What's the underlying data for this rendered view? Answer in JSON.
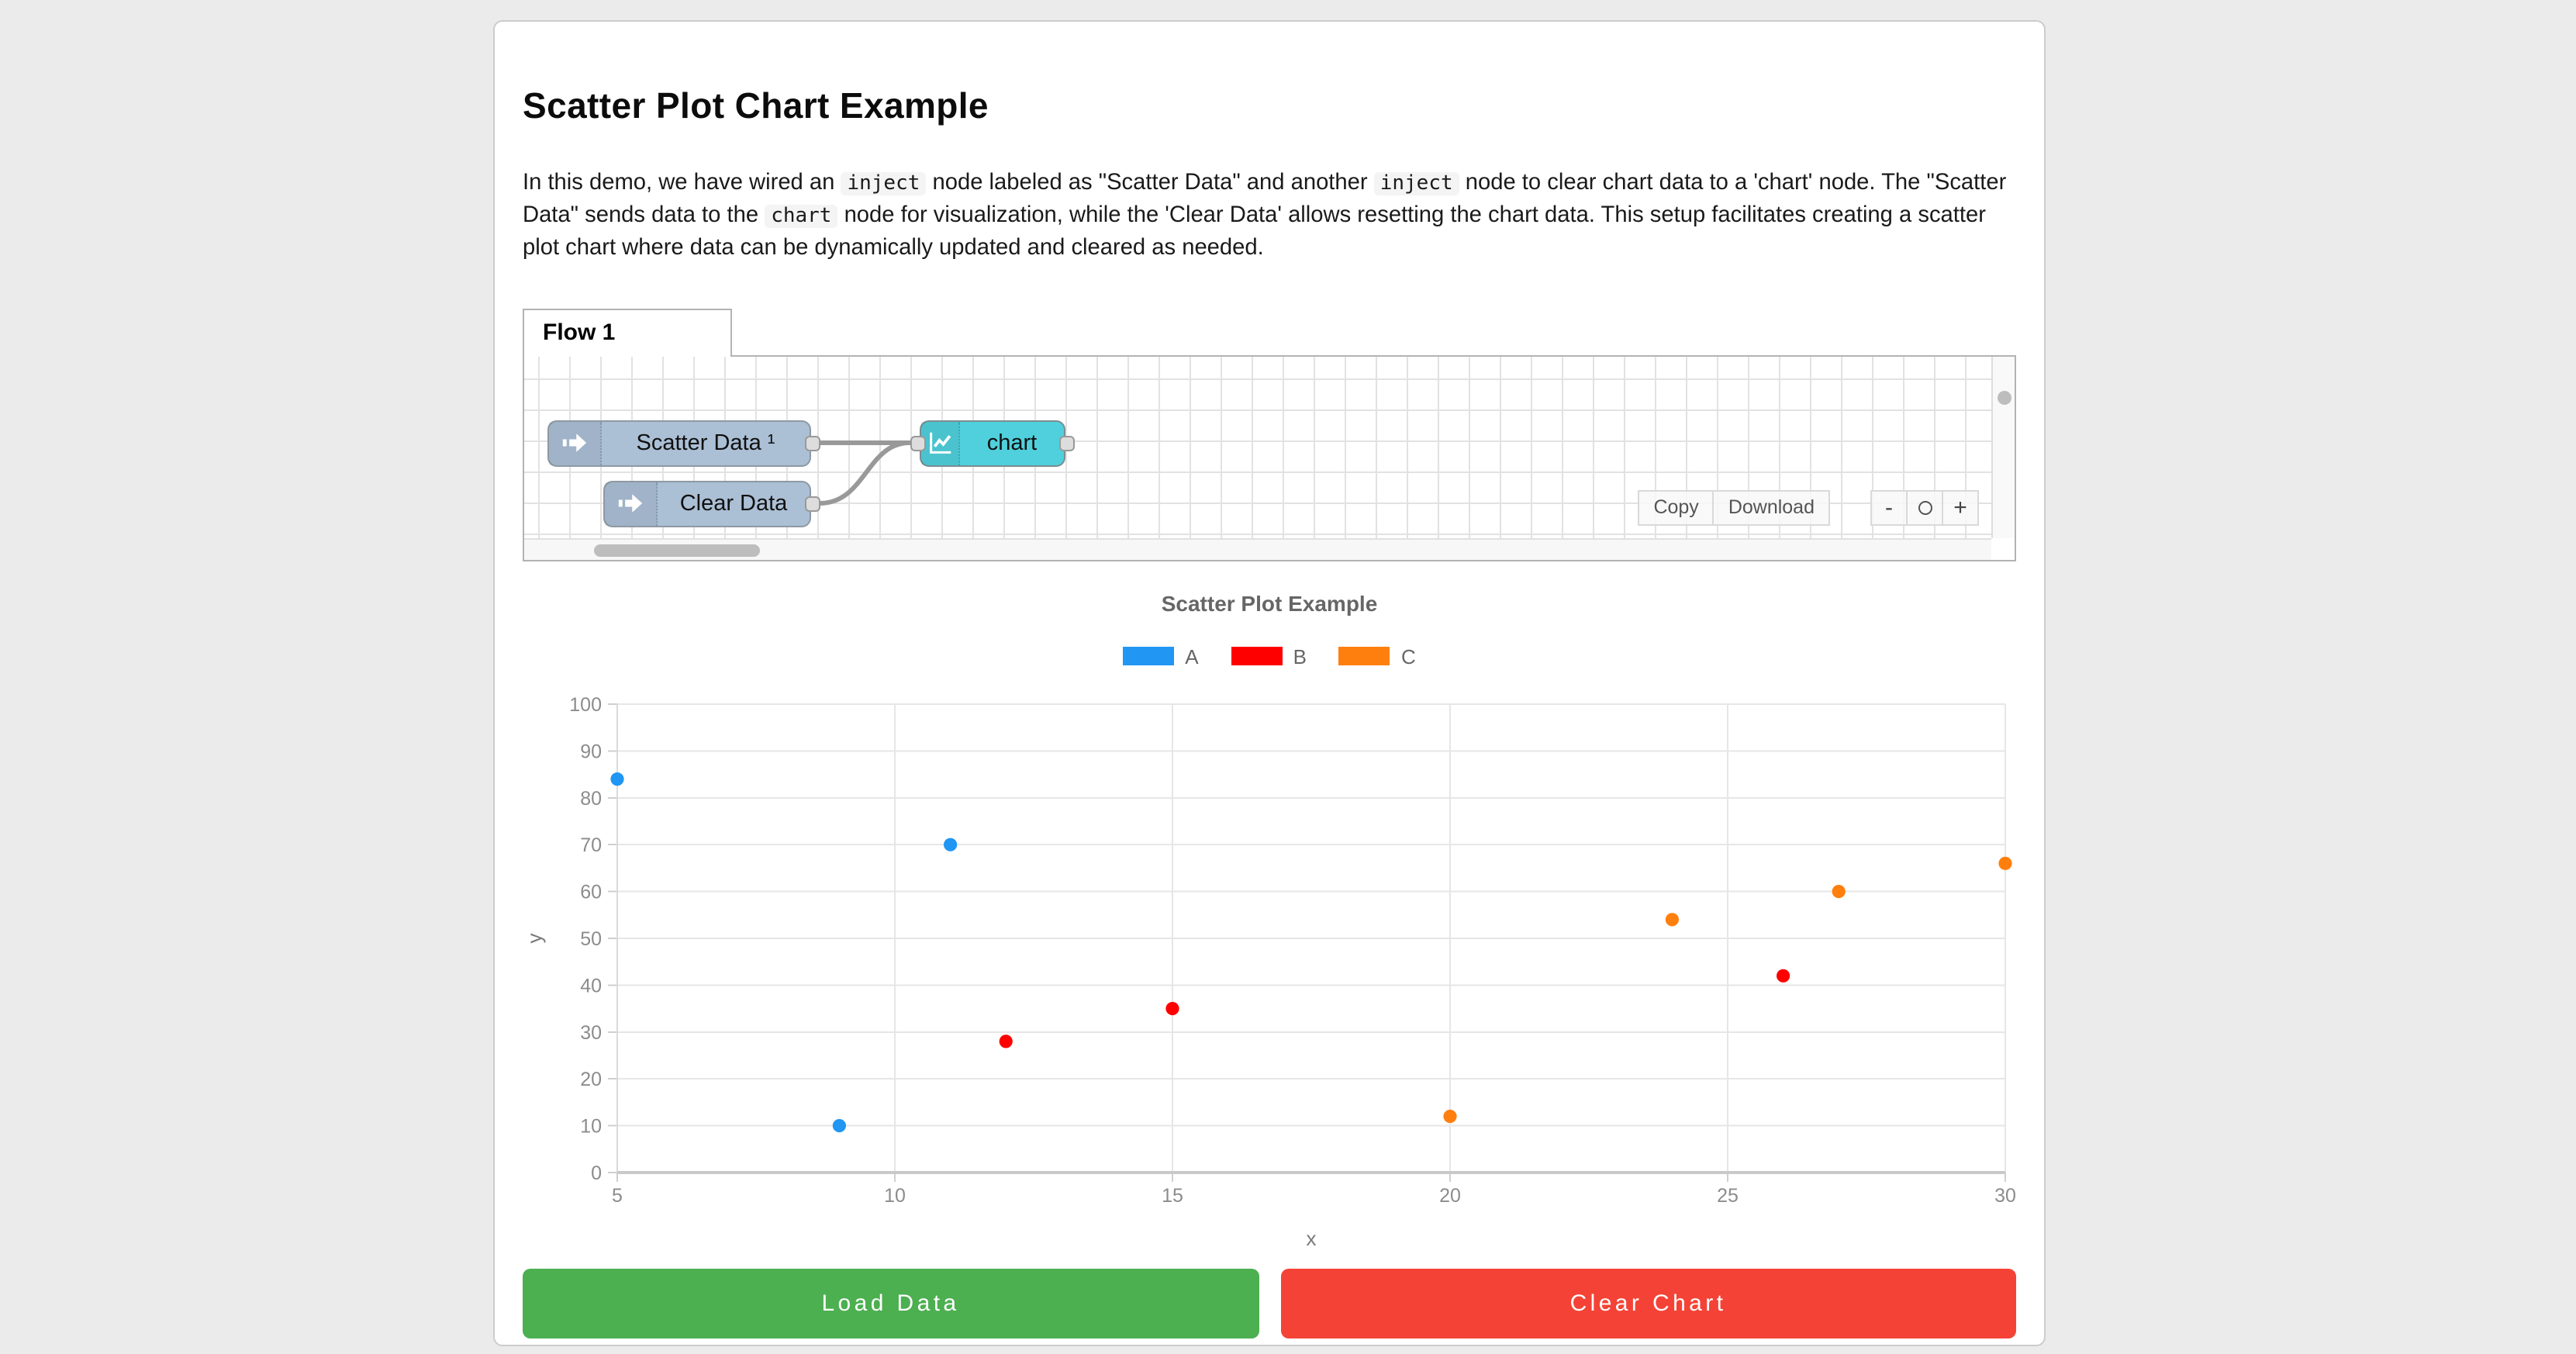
{
  "window": {
    "background": "#ebebeb",
    "card_background": "#ffffff"
  },
  "header": {
    "title": "Scatter Plot Chart Example"
  },
  "description": {
    "segments": [
      {
        "type": "text",
        "text": "In this demo, we have wired an "
      },
      {
        "type": "code",
        "text": "inject"
      },
      {
        "type": "text",
        "text": " node labeled as \"Scatter Data\" and another "
      },
      {
        "type": "code",
        "text": "inject"
      },
      {
        "type": "text",
        "text": " node to clear chart data to a 'chart' node. The \"Scatter Data\" sends data to the "
      },
      {
        "type": "code",
        "text": "chart"
      },
      {
        "type": "text",
        "text": " node for visualization, while the 'Clear Data' allows resetting the chart data. This setup facilitates creating a scatter plot chart where data can be dynamically updated and cleared as needed."
      }
    ]
  },
  "flow": {
    "tab_label": "Flow 1",
    "nodes": [
      {
        "label": "Scatter Data ¹",
        "type": "inject"
      },
      {
        "label": "Clear Data",
        "type": "inject"
      },
      {
        "label": "chart",
        "type": "chart"
      }
    ],
    "toolbar": {
      "copy": "Copy",
      "download": "Download"
    },
    "zoom": {
      "out": "-",
      "in": "+",
      "reset_icon": "circle"
    },
    "colors": {
      "inject_fill": "#abbfd5",
      "chart_fill": "#4fd0dc",
      "wire": "#999999",
      "grid": "#e2e2e2"
    }
  },
  "chart_data": {
    "type": "scatter",
    "title": "Scatter Plot Example",
    "xlabel": "x",
    "ylabel": "y",
    "xlim": [
      5,
      30
    ],
    "ylim": [
      0,
      100
    ],
    "x_ticks": [
      5,
      10,
      15,
      20,
      25,
      30
    ],
    "y_ticks": [
      0,
      10,
      20,
      30,
      40,
      50,
      60,
      70,
      80,
      90,
      100
    ],
    "grid": true,
    "legend_position": "top",
    "series": [
      {
        "name": "A",
        "color": "#2196f3",
        "points": [
          [
            5,
            84
          ],
          [
            9,
            10
          ],
          [
            11,
            70
          ]
        ]
      },
      {
        "name": "B",
        "color": "#ff0000",
        "points": [
          [
            12,
            28
          ],
          [
            15,
            35
          ],
          [
            26,
            42
          ]
        ]
      },
      {
        "name": "C",
        "color": "#ff7f0e",
        "points": [
          [
            20,
            12
          ],
          [
            24,
            54
          ],
          [
            27,
            60
          ],
          [
            30,
            66
          ]
        ]
      }
    ]
  },
  "actions": {
    "load": {
      "label": "Load Data",
      "color": "#4caf50"
    },
    "clear": {
      "label": "Clear Chart",
      "color": "#f44336"
    }
  }
}
